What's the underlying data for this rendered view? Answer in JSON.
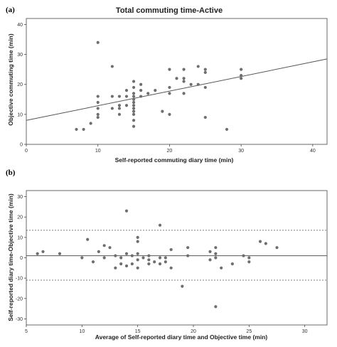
{
  "chart_data": [
    {
      "panel": "(a)",
      "type": "scatter",
      "title": "Total commuting time-Active",
      "xlabel": "Self-reported commuting diary time (min)",
      "ylabel": "Objective commuting time (min)",
      "xlim": [
        0,
        42
      ],
      "ylim": [
        0,
        42
      ],
      "xticks": [
        0,
        10,
        20,
        30,
        40
      ],
      "yticks": [
        0,
        10,
        20,
        30,
        40
      ],
      "grid": false,
      "point_color": "#6e6e6e",
      "fit_line": {
        "x": [
          0,
          42
        ],
        "y": [
          8.0,
          28.5
        ],
        "color": "#555555"
      },
      "points": [
        [
          7,
          5
        ],
        [
          8,
          5
        ],
        [
          9,
          7
        ],
        [
          10,
          34
        ],
        [
          10,
          16
        ],
        [
          10,
          14
        ],
        [
          10,
          12
        ],
        [
          10,
          10
        ],
        [
          10,
          9
        ],
        [
          12,
          26
        ],
        [
          12,
          16
        ],
        [
          12,
          12
        ],
        [
          13,
          16
        ],
        [
          13,
          13
        ],
        [
          13,
          12
        ],
        [
          13,
          10
        ],
        [
          14,
          18
        ],
        [
          14,
          13
        ],
        [
          14,
          16
        ],
        [
          15,
          21
        ],
        [
          15,
          19
        ],
        [
          15,
          17
        ],
        [
          15,
          16
        ],
        [
          15,
          15
        ],
        [
          15,
          14
        ],
        [
          15,
          13
        ],
        [
          15,
          12
        ],
        [
          15,
          11
        ],
        [
          15,
          10
        ],
        [
          15,
          8
        ],
        [
          15,
          6
        ],
        [
          16,
          20
        ],
        [
          16,
          18
        ],
        [
          16,
          16
        ],
        [
          17,
          17
        ],
        [
          18,
          18
        ],
        [
          19,
          11
        ],
        [
          20,
          25
        ],
        [
          20,
          19
        ],
        [
          20,
          17
        ],
        [
          20,
          10
        ],
        [
          21,
          22
        ],
        [
          22,
          25
        ],
        [
          22,
          22
        ],
        [
          22,
          21
        ],
        [
          22,
          17
        ],
        [
          23,
          20
        ],
        [
          24,
          26
        ],
        [
          24,
          20
        ],
        [
          25,
          25
        ],
        [
          25,
          24
        ],
        [
          25,
          19
        ],
        [
          25,
          9
        ],
        [
          28,
          5
        ],
        [
          30,
          25
        ],
        [
          30,
          23
        ],
        [
          30,
          22
        ]
      ]
    },
    {
      "panel": "(b)",
      "type": "scatter",
      "title": "",
      "xlabel": "Average of Self-reported diary time and Objective time (min)",
      "ylabel": "Self-reported diary time-Objective time (min)",
      "xlim": [
        5,
        32
      ],
      "ylim": [
        -33,
        33
      ],
      "xticks": [
        5,
        10,
        15,
        20,
        25,
        30
      ],
      "yticks": [
        -30,
        -20,
        -10,
        0,
        10,
        20,
        30
      ],
      "grid": false,
      "point_color": "#6e6e6e",
      "mean_line": {
        "y": 1.0,
        "color": "#555555"
      },
      "limit_lines": {
        "upper": 13.5,
        "lower": -11.0,
        "color": "#555555"
      },
      "points": [
        [
          6,
          2
        ],
        [
          6.5,
          3
        ],
        [
          8,
          2
        ],
        [
          10,
          0
        ],
        [
          10.5,
          9
        ],
        [
          11,
          -2
        ],
        [
          11.5,
          3
        ],
        [
          12,
          6
        ],
        [
          12,
          0
        ],
        [
          12.5,
          5
        ],
        [
          13,
          1
        ],
        [
          13,
          -5
        ],
        [
          13.5,
          0
        ],
        [
          13.5,
          -3
        ],
        [
          14,
          23
        ],
        [
          14,
          2
        ],
        [
          14,
          -4
        ],
        [
          14.5,
          1
        ],
        [
          14.5,
          -3
        ],
        [
          15,
          10
        ],
        [
          15,
          8
        ],
        [
          15,
          2
        ],
        [
          15,
          -1
        ],
        [
          15,
          -5
        ],
        [
          15.5,
          0
        ],
        [
          16,
          1
        ],
        [
          16,
          -1
        ],
        [
          16,
          -3
        ],
        [
          16.5,
          -2
        ],
        [
          17,
          16
        ],
        [
          17,
          0
        ],
        [
          17,
          -3
        ],
        [
          17.5,
          0
        ],
        [
          17.5,
          -2
        ],
        [
          18,
          4
        ],
        [
          18,
          -5
        ],
        [
          19,
          -14
        ],
        [
          19.5,
          5
        ],
        [
          19.5,
          1
        ],
        [
          21.5,
          3
        ],
        [
          21.5,
          -1
        ],
        [
          22,
          -24
        ],
        [
          22,
          5
        ],
        [
          22,
          2
        ],
        [
          22,
          0
        ],
        [
          22.5,
          -5
        ],
        [
          23.5,
          -3
        ],
        [
          24.5,
          1
        ],
        [
          25,
          -2
        ],
        [
          25,
          0
        ],
        [
          26,
          8
        ],
        [
          26.5,
          7
        ],
        [
          27.5,
          5
        ]
      ]
    }
  ]
}
